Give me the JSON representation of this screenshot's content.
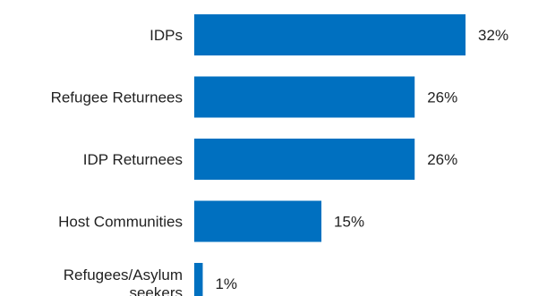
{
  "chart_data": {
    "type": "bar",
    "orientation": "horizontal",
    "title": "",
    "xlabel": "",
    "ylabel": "",
    "categories": [
      "IDPs",
      "Refugee Returnees",
      "IDP Returnees",
      "Host Communities",
      "Refugees/Asylum seekers"
    ],
    "category_display": [
      [
        "IDPs"
      ],
      [
        "Refugee Returnees"
      ],
      [
        "IDP Returnees"
      ],
      [
        "Host Communities"
      ],
      [
        "Refugees/Asylum",
        "seekers"
      ]
    ],
    "values": [
      32,
      26,
      26,
      15,
      1
    ],
    "value_labels": [
      "32%",
      "26%",
      "26%",
      "15%",
      "1%"
    ],
    "unit": "%",
    "xlim": [
      0,
      32
    ],
    "grid": false,
    "legend": "none",
    "bar_color": "#0070c0"
  }
}
